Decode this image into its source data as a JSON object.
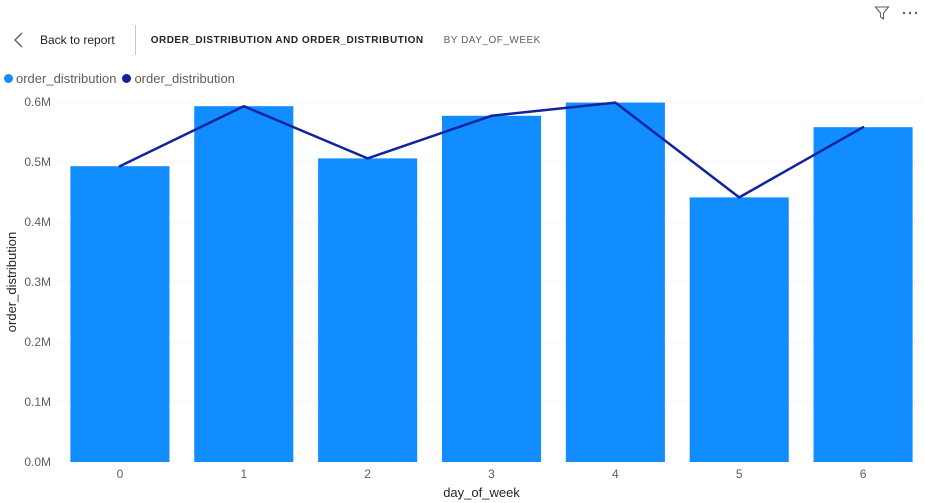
{
  "header": {
    "back_label": "Back to report",
    "title": "ORDER_DISTRIBUTION AND ORDER_DISTRIBUTION",
    "subtitle": "BY DAY_OF_WEEK"
  },
  "toolbar": {
    "filter_icon": "filter-icon",
    "more_icon": "more-options-icon"
  },
  "colors": {
    "bar": "#118DFF",
    "line": "#12239E",
    "grid": "#d9d9d9",
    "axis_text": "#605e5c"
  },
  "chart_data": {
    "type": "bar",
    "categories": [
      "0",
      "1",
      "2",
      "3",
      "4",
      "5",
      "6"
    ],
    "series": [
      {
        "name": "order_distribution",
        "type": "bar",
        "values": [
          0.493,
          0.593,
          0.506,
          0.577,
          0.599,
          0.441,
          0.558
        ]
      },
      {
        "name": "order_distribution",
        "type": "line",
        "values": [
          0.493,
          0.593,
          0.506,
          0.577,
          0.599,
          0.441,
          0.558
        ]
      }
    ],
    "xlabel": "day_of_week",
    "ylabel": "order_distribution",
    "yticks": [
      "0.0M",
      "0.1M",
      "0.2M",
      "0.3M",
      "0.4M",
      "0.5M",
      "0.6M"
    ],
    "ylim": [
      0,
      0.6
    ],
    "grid": true,
    "legend": "top-left"
  }
}
